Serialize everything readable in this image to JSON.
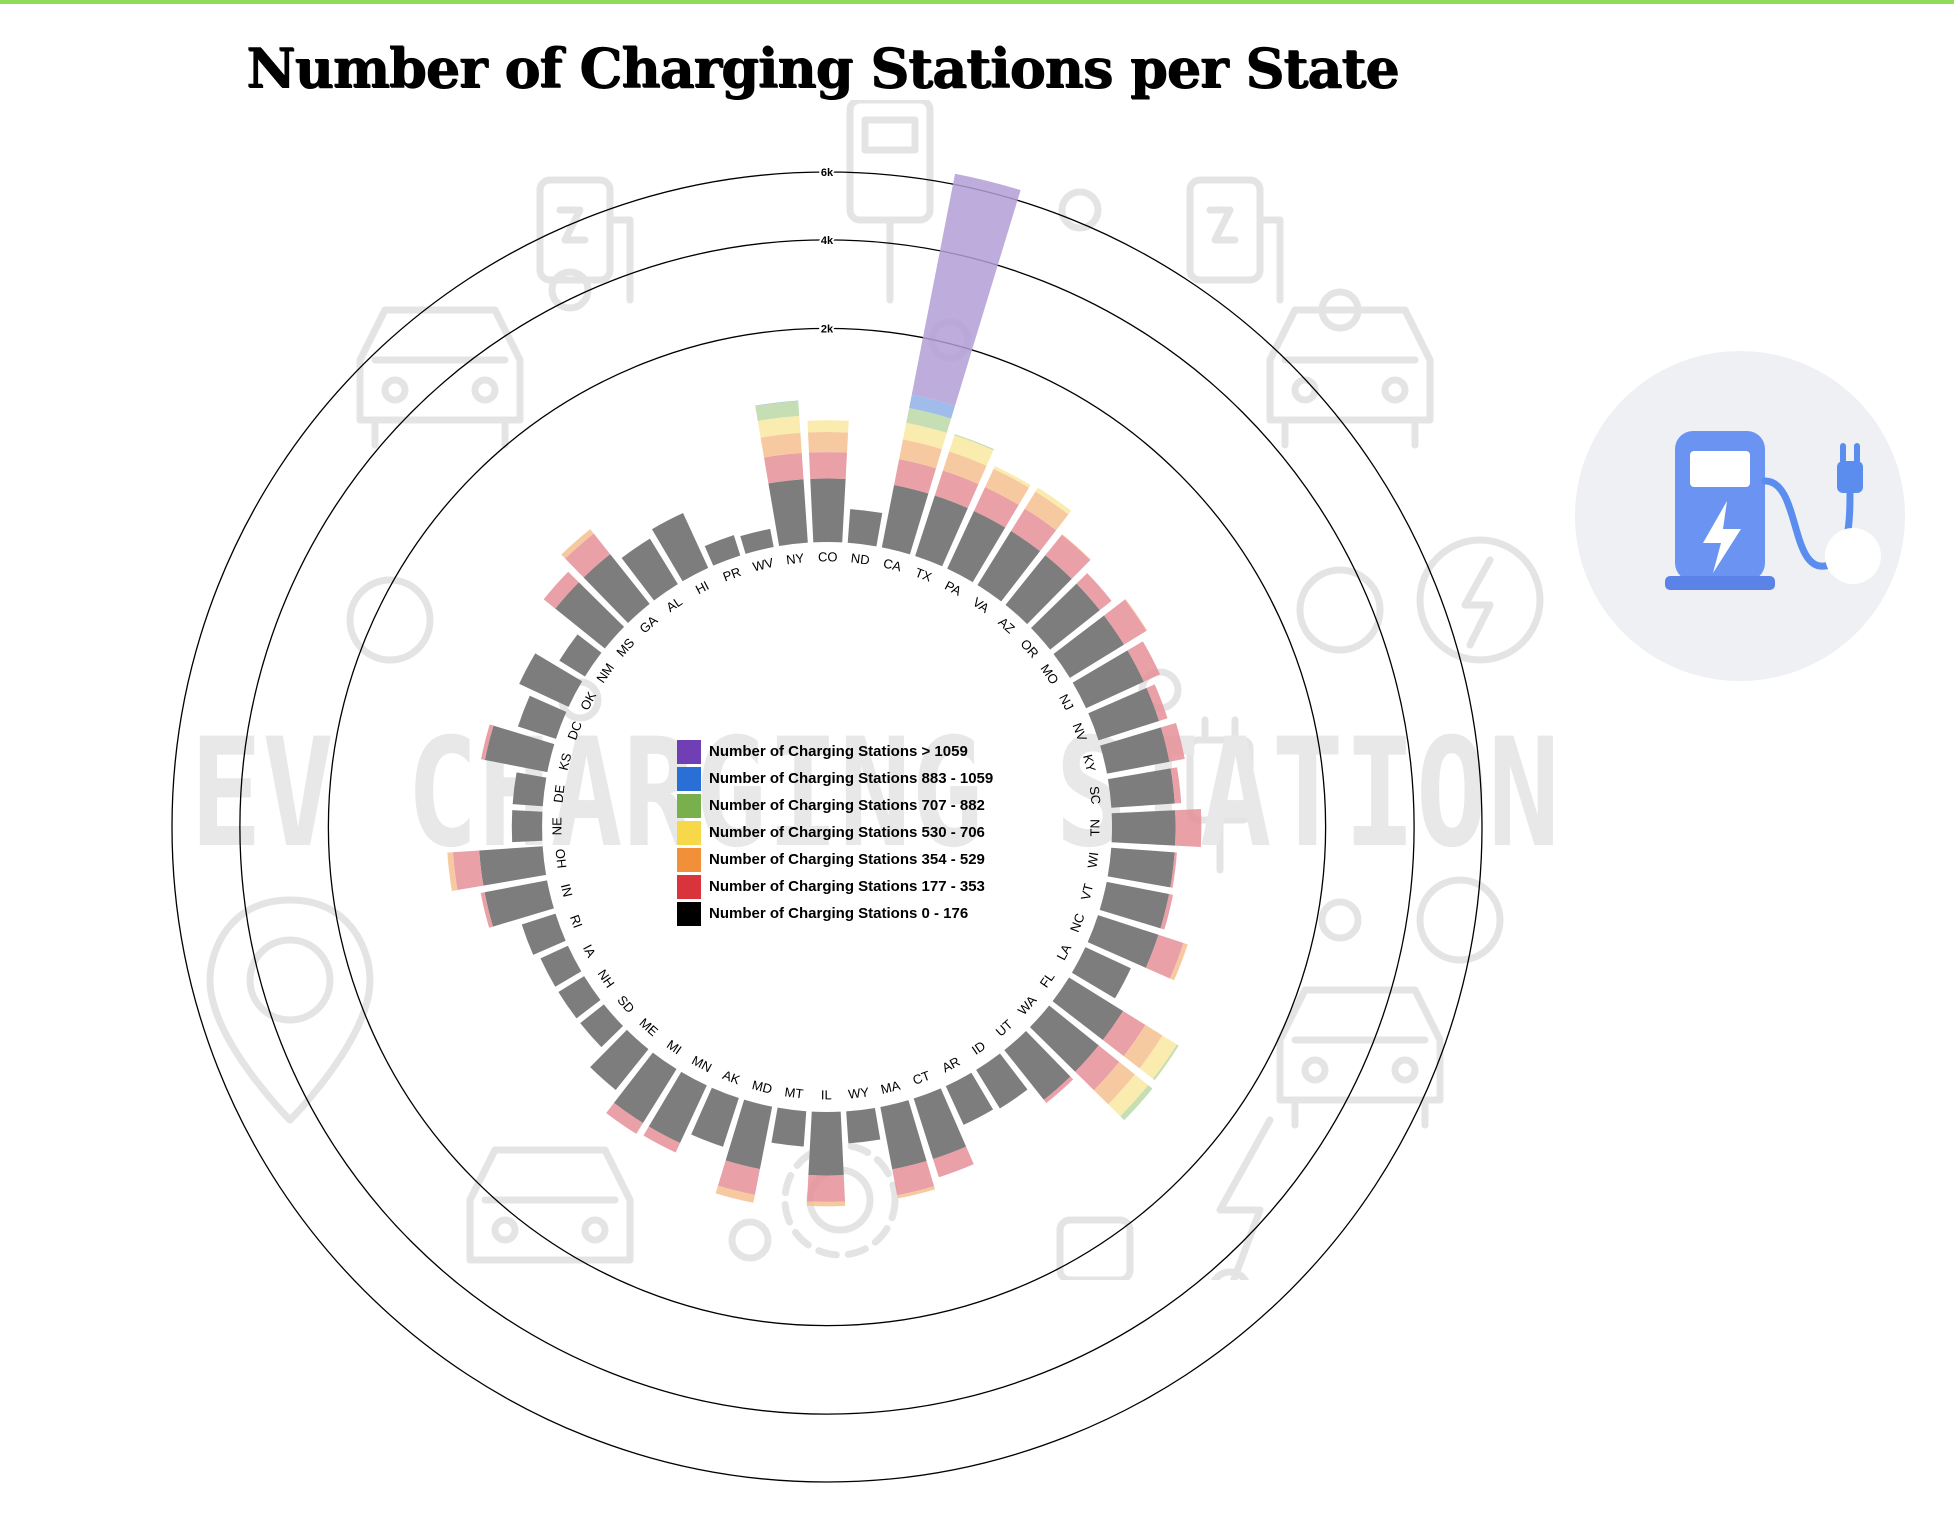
{
  "title": "Number of Charging Stations per State",
  "background": {
    "watermark_text": "EV CHARGING STATION",
    "icons": [
      "car-icon",
      "charging-pump-icon",
      "lightning-bolt-icon",
      "gear-icon",
      "location-pin-icon",
      "power-plug-icon"
    ]
  },
  "logo": {
    "icon": "ev-charging-pump-icon",
    "colors": {
      "pump": "#5b8def",
      "plug": "#5b8def",
      "background": "#eef0f4"
    }
  },
  "legend": {
    "items": [
      {
        "label": "Number of Charging Stations > 1059",
        "color": "#6f3fb3"
      },
      {
        "label": "Number of Charging Stations 883 - 1059",
        "color": "#2a6fd6"
      },
      {
        "label": "Number of Charging Stations 707 - 882",
        "color": "#78b04e"
      },
      {
        "label": "Number of Charging Stations 530 - 706",
        "color": "#f7d84a"
      },
      {
        "label": "Number of Charging Stations 354 - 529",
        "color": "#f2903a"
      },
      {
        "label": "Number of Charging Stations 177 - 353",
        "color": "#d9333b"
      },
      {
        "label": "Number of Charging Stations 0 - 176",
        "color": "#000000"
      }
    ]
  },
  "chart_data": {
    "type": "radial stacked bar",
    "title": "Number of Charging Stations per State",
    "radial_axis": {
      "ticks": [
        2000,
        4000,
        6000
      ],
      "tick_labels": [
        "2k",
        "4k",
        "6k"
      ]
    },
    "band_thresholds": [
      0,
      177,
      354,
      530,
      707,
      883,
      1060
    ],
    "band_colors": [
      "#7d7d7d",
      "#e58f96",
      "#f6c08f",
      "#f9e7a0",
      "#bcd8a6",
      "#8fb0e8",
      "#b19dd6"
    ],
    "categories": [
      "CA",
      "TX",
      "PA",
      "VA",
      "AZ",
      "OR",
      "MO",
      "NJ",
      "NV",
      "KY",
      "SC",
      "TN",
      "WI",
      "VT",
      "NC",
      "LA",
      "FL",
      "WA",
      "UT",
      "ID",
      "AR",
      "CT",
      "MA",
      "WY",
      "IL",
      "MT",
      "MD",
      "AK",
      "MN",
      "MI",
      "ME",
      "SD",
      "NH",
      "IA",
      "RI",
      "IN",
      "OH",
      "NE",
      "DE",
      "KS",
      "DC",
      "OK",
      "NM",
      "MS",
      "GA",
      "AL",
      "HI",
      "PR",
      "WV",
      "NY",
      "CO",
      "ND"
    ],
    "values": [
      6350,
      720,
      560,
      575,
      360,
      270,
      360,
      290,
      230,
      275,
      215,
      350,
      190,
      200,
      390,
      110,
      730,
      770,
      200,
      90,
      80,
      300,
      380,
      45,
      390,
      55,
      420,
      115,
      240,
      255,
      120,
      40,
      40,
      40,
      55,
      200,
      400,
      40,
      40,
      200,
      70,
      130,
      40,
      270,
      400,
      125,
      160,
      20,
      15,
      890,
      650,
      50
    ]
  }
}
